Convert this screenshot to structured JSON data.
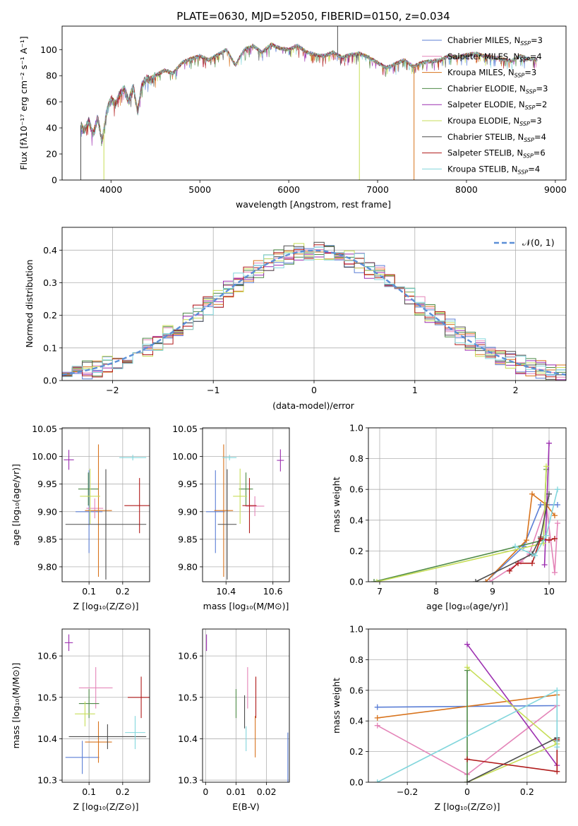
{
  "palette": {
    "Chabrier MILES": "#5b7fd6",
    "Salpeter MILES": "#e484b8",
    "Kroupa MILES": "#d8731c",
    "Chabrier ELODIE": "#4e8a47",
    "Salpeter ELODIE": "#9c2fb0",
    "Kroupa ELODIE": "#c7de58",
    "Chabrier STELIB": "#4d4d4d",
    "Salpeter STELIB": "#b01a1a",
    "Kroupa STELIB": "#82d6dc"
  },
  "chart_data": [
    {
      "id": "spectrum",
      "type": "line",
      "title": "PLATE=0630, MJD=52050, FIBERID=0150, z=0.034",
      "xlabel": "wavelength [Angstrom, rest frame]",
      "ylabel": "Flux [fλ10⁻¹⁷ erg cm⁻² s⁻¹ A⁻¹]",
      "xlim": [
        3450,
        9120
      ],
      "ylim": [
        0,
        118
      ],
      "xticks": [
        4000,
        5000,
        6000,
        7000,
        8000,
        9000
      ],
      "yticks": [
        0,
        20,
        40,
        60,
        80,
        100
      ],
      "grid": false,
      "legend_position": "top-right",
      "legend": [
        {
          "label": "Chabrier MILES, N",
          "sub": "SSP",
          "tail": "=3",
          "color": "#5b7fd6"
        },
        {
          "label": "Salpeter MILES, N",
          "sub": "SSP",
          "tail": "=4",
          "color": "#e484b8"
        },
        {
          "label": "Kroupa MILES, N",
          "sub": "SSP",
          "tail": "=3",
          "color": "#d8731c"
        },
        {
          "label": "Chabrier ELODIE, N",
          "sub": "SSP",
          "tail": "=3",
          "color": "#4e8a47"
        },
        {
          "label": "Salpeter ELODIE, N",
          "sub": "SSP",
          "tail": "=2",
          "color": "#9c2fb0"
        },
        {
          "label": "Kroupa ELODIE, N",
          "sub": "SSP",
          "tail": "=3",
          "color": "#c7de58"
        },
        {
          "label": "Chabrier STELIB, N",
          "sub": "SSP",
          "tail": "=4",
          "color": "#4d4d4d"
        },
        {
          "label": "Salpeter STELIB, N",
          "sub": "SSP",
          "tail": "=6",
          "color": "#b01a1a"
        },
        {
          "label": "Kroupa STELIB, N",
          "sub": "SSP",
          "tail": "=4",
          "color": "#82d6dc"
        }
      ],
      "series_envelope": {
        "x": [
          3660,
          3700,
          3750,
          3800,
          3850,
          3900,
          3950,
          4000,
          4050,
          4100,
          4150,
          4200,
          4250,
          4300,
          4350,
          4400,
          4450,
          4500,
          4600,
          4700,
          4800,
          4900,
          5000,
          5100,
          5200,
          5300,
          5400,
          5500,
          5600,
          5700,
          5800,
          5900,
          6000,
          6100,
          6200,
          6300,
          6400,
          6500,
          6600,
          6700,
          6800,
          6900,
          7000,
          7100,
          7200,
          7300,
          7400,
          7500,
          7600,
          7700,
          7800,
          7900,
          8000,
          8100,
          8200,
          8300,
          8400,
          8500,
          8600,
          8700,
          8800
        ],
        "y": [
          42,
          38,
          45,
          35,
          48,
          30,
          52,
          62,
          58,
          66,
          70,
          60,
          72,
          52,
          73,
          78,
          76,
          80,
          84,
          82,
          90,
          93,
          95,
          92,
          96,
          100,
          88,
          100,
          103,
          98,
          104,
          101,
          100,
          103,
          98,
          96,
          95,
          98,
          94,
          96,
          97,
          94,
          90,
          86,
          89,
          92,
          87,
          90,
          91,
          92,
          95,
          94,
          96,
          97,
          95,
          94,
          93,
          91,
          95,
          93,
          92
        ]
      },
      "spikes": [
        {
          "x": 3660,
          "y": 0
        },
        {
          "x": 3920,
          "y": 0
        },
        {
          "x": 6550,
          "y": 118
        },
        {
          "x": 6795,
          "y": 0
        },
        {
          "x": 7410,
          "y": 0
        }
      ]
    },
    {
      "id": "residuals",
      "type": "histogram",
      "xlabel": "(data-model)/error",
      "ylabel": "Normed distribution",
      "xlim": [
        -2.5,
        2.5
      ],
      "ylim": [
        0,
        0.47
      ],
      "xticks": [
        -2,
        -1,
        0,
        1,
        2
      ],
      "yticks": [
        0.0,
        0.1,
        0.2,
        0.3,
        0.4
      ],
      "grid": true,
      "legend_position": "top-right",
      "reference_curve": {
        "label": "𝒩(0, 1)",
        "color": "#5b8fd6",
        "style": "dashed",
        "mean": 0,
        "sigma": 1
      },
      "bin_width": 0.1
    },
    {
      "id": "age_vs_Z",
      "type": "errorbar",
      "xlabel": "Z [log₁₀(Z/Z⊙)]",
      "ylabel": "age  [log₁₀(age/yr)]",
      "xlim": [
        0.02,
        0.28
      ],
      "ylim": [
        9.773,
        10.052
      ],
      "xticks": [
        0.1,
        0.2
      ],
      "yticks": [
        9.8,
        9.85,
        9.9,
        9.95,
        10.0,
        10.05
      ],
      "grid": true,
      "points": [
        {
          "model": "Chabrier MILES",
          "x": 0.1,
          "y": 9.9,
          "xerr": 0.04,
          "yerr": 0.075
        },
        {
          "model": "Salpeter MILES",
          "x": 0.117,
          "y": 9.906,
          "xerr": 0.025,
          "yerr": 0.018
        },
        {
          "model": "Kroupa MILES",
          "x": 0.128,
          "y": 9.902,
          "xerr": 0.04,
          "yerr": 0.12
        },
        {
          "model": "Chabrier ELODIE",
          "x": 0.098,
          "y": 9.941,
          "xerr": 0.03,
          "yerr": 0.03
        },
        {
          "model": "Salpeter ELODIE",
          "x": 0.04,
          "y": 9.994,
          "xerr": 0.015,
          "yerr": 0.018
        },
        {
          "model": "Kroupa ELODIE",
          "x": 0.103,
          "y": 9.928,
          "xerr": 0.03,
          "yerr": 0.05
        },
        {
          "model": "Chabrier STELIB",
          "x": 0.15,
          "y": 9.877,
          "xerr": 0.12,
          "yerr": 0.1
        },
        {
          "model": "Salpeter STELIB",
          "x": 0.25,
          "y": 9.911,
          "xerr": 0.045,
          "yerr": 0.05
        },
        {
          "model": "Kroupa STELIB",
          "x": 0.23,
          "y": 9.998,
          "xerr": 0.04,
          "yerr": 0.005
        }
      ]
    },
    {
      "id": "age_vs_mass",
      "type": "errorbar",
      "xlabel": "mass [log₁₀(M/M⊙)]",
      "ylabel": "",
      "xlim": [
        10.3,
        10.67
      ],
      "ylim": [
        9.773,
        10.052
      ],
      "xticks": [
        10.4,
        10.6
      ],
      "yticks": [
        9.8,
        9.85,
        9.9,
        9.95,
        10.0,
        10.05
      ],
      "grid": true,
      "points": [
        {
          "model": "Chabrier MILES",
          "x": 10.355,
          "y": 9.9,
          "xerr": 0.04,
          "yerr": 0.075
        },
        {
          "model": "Salpeter MILES",
          "x": 10.523,
          "y": 9.91,
          "xerr": 0.04,
          "yerr": 0.018
        },
        {
          "model": "Kroupa MILES",
          "x": 10.39,
          "y": 9.902,
          "xerr": 0.04,
          "yerr": 0.12
        },
        {
          "model": "Chabrier ELODIE",
          "x": 10.485,
          "y": 9.941,
          "xerr": 0.03,
          "yerr": 0.03
        },
        {
          "model": "Salpeter ELODIE",
          "x": 10.632,
          "y": 9.993,
          "xerr": 0.015,
          "yerr": 0.02
        },
        {
          "model": "Kroupa ELODIE",
          "x": 10.46,
          "y": 9.928,
          "xerr": 0.03,
          "yerr": 0.05
        },
        {
          "model": "Chabrier STELIB",
          "x": 10.405,
          "y": 9.877,
          "xerr": 0.04,
          "yerr": 0.1
        },
        {
          "model": "Salpeter STELIB",
          "x": 10.5,
          "y": 9.911,
          "xerr": 0.03,
          "yerr": 0.05
        },
        {
          "model": "Kroupa STELIB",
          "x": 10.415,
          "y": 9.998,
          "xerr": 0.03,
          "yerr": 0.005
        }
      ]
    },
    {
      "id": "weight_vs_age",
      "type": "line",
      "xlabel": "age  [log₁₀(age/yr)]",
      "ylabel": "mass weight",
      "xlim": [
        6.8,
        10.3
      ],
      "ylim": [
        0,
        1
      ],
      "xticks": [
        7,
        8,
        9,
        10
      ],
      "yticks": [
        0.0,
        0.2,
        0.4,
        0.6,
        0.8,
        1.0
      ],
      "grid": true,
      "series": [
        {
          "model": "Chabrier MILES",
          "x": [
            8.88,
            9.55,
            9.85,
            10.15
          ],
          "y": [
            0.0,
            0.23,
            0.5,
            0.5
          ]
        },
        {
          "model": "Salpeter MILES",
          "x": [
            8.95,
            9.5,
            9.65,
            9.95,
            10.1,
            10.15
          ],
          "y": [
            0.0,
            0.13,
            0.18,
            0.5,
            0.06,
            0.38
          ]
        },
        {
          "model": "Kroupa MILES",
          "x": [
            8.88,
            9.6,
            9.7,
            9.95,
            10.1
          ],
          "y": [
            0.0,
            0.27,
            0.57,
            0.5,
            0.43
          ]
        },
        {
          "model": "Chabrier ELODIE",
          "x": [
            6.9,
            9.9,
            9.95
          ],
          "y": [
            0.0,
            0.27,
            0.73
          ]
        },
        {
          "model": "Salpeter ELODIE",
          "x": [
            9.92,
            10.0
          ],
          "y": [
            0.11,
            0.9
          ]
        },
        {
          "model": "Kroupa ELODIE",
          "x": [
            6.95,
            9.9,
            9.95
          ],
          "y": [
            0.0,
            0.25,
            0.75
          ]
        },
        {
          "model": "Chabrier STELIB",
          "x": [
            8.7,
            9.7,
            9.85,
            10.0
          ],
          "y": [
            0.0,
            0.18,
            0.29,
            0.57
          ]
        },
        {
          "model": "Salpeter STELIB",
          "x": [
            9.3,
            9.45,
            9.7,
            9.85,
            10.0,
            10.1
          ],
          "y": [
            0.07,
            0.12,
            0.12,
            0.28,
            0.27,
            0.28
          ]
        },
        {
          "model": "Kroupa STELIB",
          "x": [
            9.4,
            9.75,
            9.95,
            10.15
          ],
          "y": [
            0.23,
            0.17,
            0.3,
            0.6
          ]
        }
      ]
    },
    {
      "id": "mass_vs_Z",
      "type": "errorbar",
      "xlabel": "Z [log₁₀(Z/Z⊙)]",
      "ylabel": "mass [log₁₀(M/M⊙)]",
      "xlim": [
        0.02,
        0.28
      ],
      "ylim": [
        10.295,
        10.665
      ],
      "xticks": [
        0.1,
        0.2
      ],
      "yticks": [
        10.3,
        10.4,
        10.5,
        10.6
      ],
      "grid": true,
      "points": [
        {
          "model": "Chabrier MILES",
          "x": 0.08,
          "y": 10.355,
          "xerr": 0.05,
          "yerr": 0.04
        },
        {
          "model": "Salpeter MILES",
          "x": 0.12,
          "y": 10.523,
          "xerr": 0.05,
          "yerr": 0.05
        },
        {
          "model": "Kroupa MILES",
          "x": 0.128,
          "y": 10.392,
          "xerr": 0.04,
          "yerr": 0.05
        },
        {
          "model": "Chabrier ELODIE",
          "x": 0.1,
          "y": 10.485,
          "xerr": 0.03,
          "yerr": 0.035
        },
        {
          "model": "Salpeter ELODIE",
          "x": 0.04,
          "y": 10.632,
          "xerr": 0.012,
          "yerr": 0.02
        },
        {
          "model": "Kroupa ELODIE",
          "x": 0.088,
          "y": 10.46,
          "xerr": 0.03,
          "yerr": 0.03
        },
        {
          "model": "Chabrier STELIB",
          "x": 0.155,
          "y": 10.405,
          "xerr": 0.115,
          "yerr": 0.03
        },
        {
          "model": "Salpeter STELIB",
          "x": 0.255,
          "y": 10.5,
          "xerr": 0.04,
          "yerr": 0.05
        },
        {
          "model": "Kroupa STELIB",
          "x": 0.237,
          "y": 10.415,
          "xerr": 0.03,
          "yerr": 0.04
        }
      ]
    },
    {
      "id": "mass_vs_ebv",
      "type": "errorbar",
      "xlabel": "E(B-V)",
      "ylabel": "",
      "xlim": [
        -0.001,
        0.0275
      ],
      "ylim": [
        10.295,
        10.665
      ],
      "xticks": [
        0.0,
        0.01,
        0.02
      ],
      "yticks": [
        10.3,
        10.4,
        10.5,
        10.6
      ],
      "grid": true,
      "points": [
        {
          "model": "Chabrier MILES",
          "x": 0.027,
          "y": 10.355,
          "xerr": 0.0,
          "yerr": 0.06
        },
        {
          "model": "Salpeter MILES",
          "x": 0.0138,
          "y": 10.523,
          "xerr": 0.0,
          "yerr": 0.05
        },
        {
          "model": "Kroupa MILES",
          "x": 0.0163,
          "y": 10.405,
          "xerr": 0.0,
          "yerr": 0.05
        },
        {
          "model": "Chabrier ELODIE",
          "x": 0.01,
          "y": 10.485,
          "xerr": 0.0,
          "yerr": 0.035
        },
        {
          "model": "Salpeter ELODIE",
          "x": 0.0003,
          "y": 10.632,
          "xerr": 0.0,
          "yerr": 0.02
        },
        {
          "model": "Kroupa ELODIE",
          "x": 0.0,
          "y": 10.46,
          "xerr": 0.0,
          "yerr": 0.0
        },
        {
          "model": "Chabrier STELIB",
          "x": 0.0128,
          "y": 10.465,
          "xerr": 0.0,
          "yerr": 0.04
        },
        {
          "model": "Salpeter STELIB",
          "x": 0.0165,
          "y": 10.5,
          "xerr": 0.0,
          "yerr": 0.05
        },
        {
          "model": "Kroupa STELIB",
          "x": 0.0133,
          "y": 10.4,
          "xerr": 0.0,
          "yerr": 0.03
        }
      ]
    },
    {
      "id": "weight_vs_Z",
      "type": "line",
      "xlabel": "Z [log₁₀(Z/Z⊙)]",
      "ylabel": "mass weight",
      "xlim": [
        -0.33,
        0.33
      ],
      "ylim": [
        0,
        1
      ],
      "xticks": [
        -0.2,
        0.0,
        0.2
      ],
      "yticks": [
        0.0,
        0.2,
        0.4,
        0.6,
        0.8,
        1.0
      ],
      "grid": true,
      "series": [
        {
          "model": "Chabrier MILES",
          "x": [
            -0.3,
            0.3
          ],
          "y": [
            0.49,
            0.5
          ]
        },
        {
          "model": "Salpeter MILES",
          "x": [
            -0.3,
            0.0,
            0.3
          ],
          "y": [
            0.37,
            0.05,
            0.5
          ]
        },
        {
          "model": "Kroupa MILES",
          "x": [
            -0.3,
            0.3
          ],
          "y": [
            0.42,
            0.57
          ]
        },
        {
          "model": "Chabrier ELODIE",
          "x": [
            0.0,
            0.0
          ],
          "y": [
            0.0,
            0.73
          ]
        },
        {
          "model": "Salpeter ELODIE",
          "x": [
            0.0,
            0.3
          ],
          "y": [
            0.9,
            0.11
          ]
        },
        {
          "model": "Kroupa ELODIE",
          "x": [
            0.0,
            0.3,
            0.0
          ],
          "y": [
            0.75,
            0.25,
            0.0
          ]
        },
        {
          "model": "Chabrier STELIB",
          "x": [
            0.0,
            0.3,
            0.3
          ],
          "y": [
            0.0,
            0.29,
            0.27
          ]
        },
        {
          "model": "Salpeter STELIB",
          "x": [
            0.0,
            0.3,
            0.3
          ],
          "y": [
            0.15,
            0.07,
            0.28
          ]
        },
        {
          "model": "Kroupa STELIB",
          "x": [
            -0.3,
            0.3,
            0.3
          ],
          "y": [
            0.0,
            0.6,
            0.23
          ]
        }
      ]
    }
  ]
}
